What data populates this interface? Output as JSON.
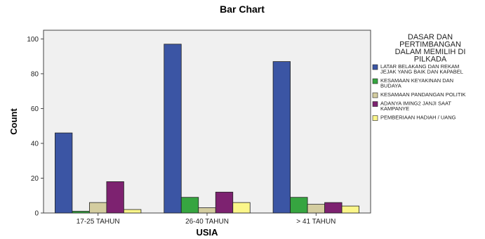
{
  "chart_data": {
    "type": "bar",
    "title": "Bar Chart",
    "xlabel": "USIA",
    "ylabel": "Count",
    "categories": [
      "17-25 TAHUN",
      "26-40 TAHUN",
      "> 41 TAHUN"
    ],
    "ylim": [
      0,
      105
    ],
    "yticks": [
      0,
      20,
      40,
      60,
      80,
      100
    ],
    "grid": false,
    "legend": {
      "position": "right",
      "title": [
        "DASAR DAN",
        "PERTIMBANGAN",
        "DALAM MEMILIH DI",
        "PILKADA"
      ]
    },
    "series": [
      {
        "name": "LATAR BELAKANG DAN REKAM JEJAK YANG BAIK DAN KAPABEL",
        "label_lines": [
          "LATAR BELAKANG DAN REKAM",
          "JEJAK YANG BAIK DAN KAPABEL"
        ],
        "color": "#3b55a4",
        "values": [
          46,
          97,
          87
        ]
      },
      {
        "name": "KESAMAAN KEYAKINAN DAN BUDAYA",
        "label_lines": [
          "KESAMAAN KEYAKINAN DAN",
          "BUDAYA"
        ],
        "color": "#36a540",
        "values": [
          1,
          9,
          9
        ]
      },
      {
        "name": "KESAMAAN PANDANGAN POLITIK",
        "label_lines": [
          "KESAMAAN PANDANGAN POLITIK"
        ],
        "color": "#d4cda0",
        "values": [
          6,
          3,
          5
        ]
      },
      {
        "name": "ADANYA IMING2 JANJI SAAT KAMPANYE",
        "label_lines": [
          "ADANYA IMING2 JANJI SAAT",
          "KAMPANYE"
        ],
        "color": "#7d2270",
        "values": [
          18,
          12,
          6
        ]
      },
      {
        "name": "PEMBERIAAN HADIAH / UANG",
        "label_lines": [
          "PEMBERIAAN HADIAH / UANG"
        ],
        "color": "#fbf68a",
        "values": [
          2,
          6,
          4
        ]
      }
    ]
  }
}
